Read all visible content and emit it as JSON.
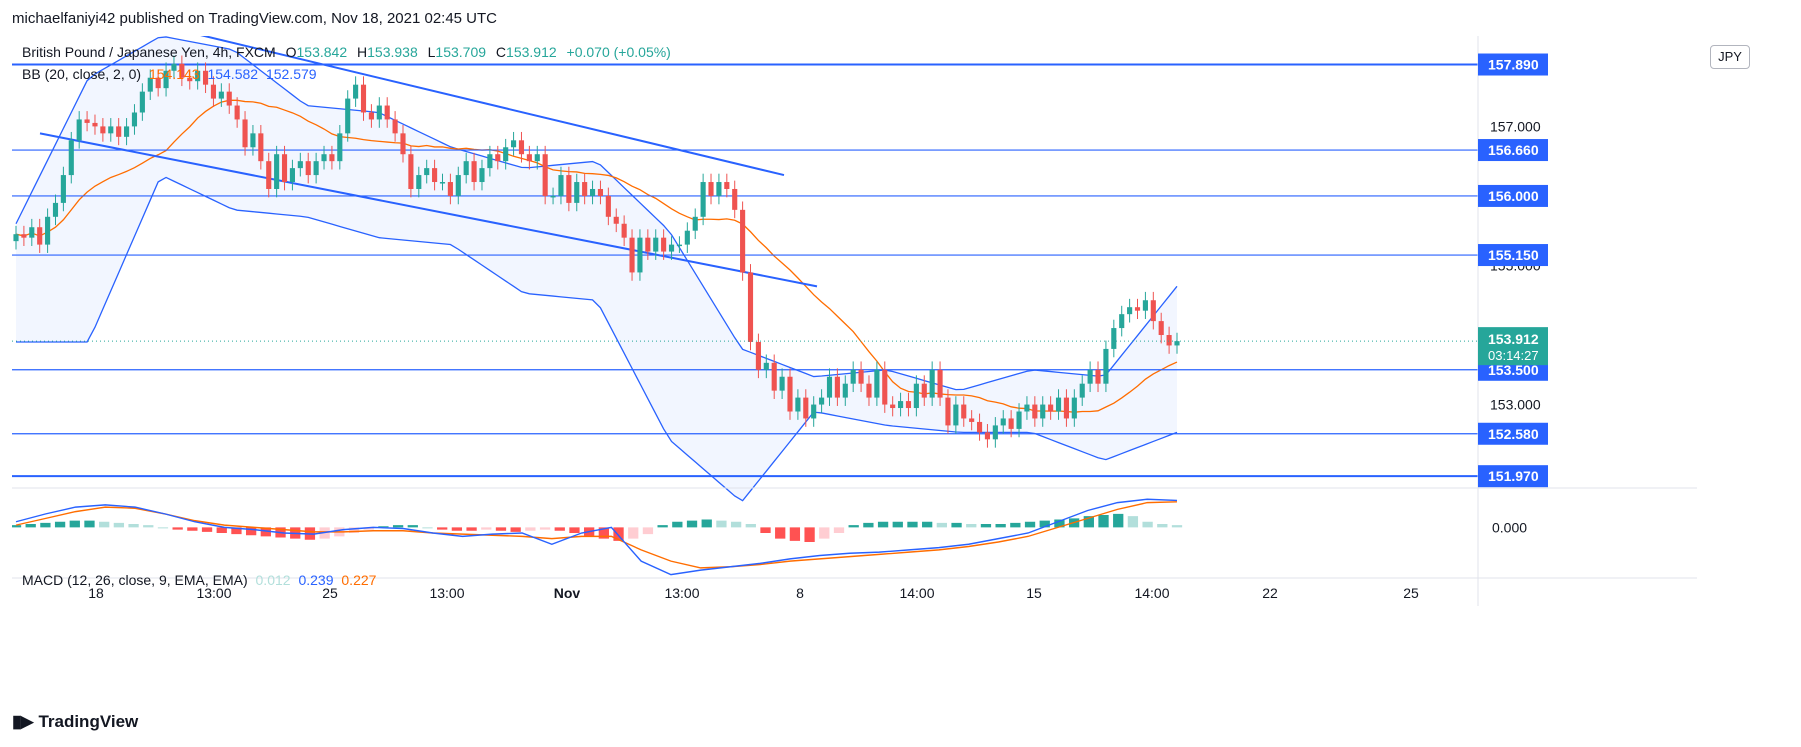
{
  "publish_line": "michaelfaniyi42 published on TradingView.com, Nov 18, 2021 02:45 UTC",
  "currency_badge": "JPY",
  "legend": {
    "symbol": "British Pound / Japanese Yen, 4h, FXCM",
    "o_label": "O",
    "o_value": "153.842",
    "h_label": "H",
    "h_value": "153.938",
    "l_label": "L",
    "l_value": "153.709",
    "c_label": "C",
    "c_value": "153.912",
    "change": "+0.070 (+0.05%)",
    "bb_label": "BB (20, close, 2, 0)",
    "bb_mid": "154.143",
    "bb_upper": "154.582",
    "bb_lower": "152.579",
    "macd_label": "MACD (12, 26, close, 9, EMA, EMA)",
    "macd_hist": "0.012",
    "macd_line": "0.239",
    "macd_signal": "0.227"
  },
  "price_axis": {
    "ticks": [
      "157.000",
      "156.000",
      "155.000",
      "153.000"
    ],
    "level_labels": [
      "157.890",
      "156.660",
      "156.000",
      "155.150",
      "153.500",
      "152.580",
      "151.970"
    ],
    "current_price": "153.912",
    "countdown": "03:14:27"
  },
  "macd_axis": {
    "ticks": [
      "0.000"
    ]
  },
  "time_axis": {
    "ticks": [
      "18",
      "13:00",
      "25",
      "13:00",
      "Nov",
      "13:00",
      "8",
      "14:00",
      "15",
      "14:00",
      "22",
      "25"
    ]
  },
  "footer": {
    "brand": "TradingView"
  },
  "colors": {
    "up": "#26a69a",
    "down": "#ef5350",
    "bb": "#2962ff",
    "basis": "#ff6d00",
    "level": "#2962ff",
    "macd": "#2962ff",
    "signal": "#ff6d00"
  },
  "chart_data": [
    {
      "type": "candlestick",
      "series_name": "GBPJPY 4h",
      "ylim": [
        151.8,
        158.3
      ],
      "horizontal_levels": [
        157.89,
        156.66,
        156.0,
        155.15,
        153.5,
        152.58,
        151.97
      ],
      "closes": [
        155.45,
        155.4,
        155.55,
        155.3,
        155.7,
        155.9,
        156.3,
        156.8,
        157.1,
        157.05,
        157.0,
        156.9,
        157.0,
        156.85,
        157.0,
        157.2,
        157.5,
        157.7,
        157.55,
        157.8,
        157.9,
        157.7,
        157.65,
        157.8,
        157.6,
        157.4,
        157.5,
        157.3,
        157.1,
        156.7,
        156.9,
        156.5,
        156.1,
        156.6,
        156.2,
        156.4,
        156.5,
        156.3,
        156.5,
        156.6,
        156.5,
        156.9,
        157.4,
        157.6,
        157.2,
        157.1,
        157.3,
        157.1,
        156.9,
        156.6,
        156.1,
        156.3,
        156.4,
        156.2,
        156.2,
        156.0,
        156.3,
        156.5,
        156.2,
        156.4,
        156.6,
        156.5,
        156.7,
        156.8,
        156.6,
        156.5,
        156.6,
        156.0,
        156.0,
        156.3,
        155.9,
        156.2,
        156.0,
        156.1,
        156.0,
        155.7,
        155.6,
        155.4,
        154.9,
        155.4,
        155.2,
        155.4,
        155.2,
        155.3,
        155.3,
        155.5,
        155.7,
        156.2,
        156.0,
        156.2,
        156.1,
        155.8,
        154.9,
        153.9,
        153.5,
        153.6,
        153.2,
        153.4,
        152.9,
        153.1,
        152.8,
        153.0,
        153.1,
        153.4,
        153.1,
        153.3,
        153.5,
        153.3,
        153.1,
        153.5,
        153.0,
        152.95,
        153.05,
        152.95,
        153.3,
        153.1,
        153.5,
        153.1,
        152.7,
        153.0,
        152.8,
        152.75,
        152.6,
        152.5,
        152.7,
        152.8,
        152.65,
        152.9,
        153.0,
        152.8,
        153.0,
        152.9,
        153.1,
        152.8,
        153.1,
        153.3,
        153.5,
        153.3,
        153.8,
        154.1,
        154.3,
        154.4,
        154.35,
        154.5,
        154.2,
        154.0,
        153.85,
        153.912
      ],
      "bb_upper_approx": [
        155.6,
        157.7,
        158.3,
        158.1,
        157.3,
        157.2,
        156.7,
        156.4,
        156.5,
        155.5,
        153.8,
        153.4,
        153.5,
        153.2,
        153.5,
        153.4,
        154.7
      ],
      "bb_lower_approx": [
        153.9,
        153.9,
        156.3,
        155.8,
        155.7,
        155.4,
        155.3,
        154.6,
        154.5,
        152.5,
        151.6,
        152.9,
        152.7,
        152.6,
        152.6,
        152.2,
        152.6
      ]
    },
    {
      "type": "macd",
      "ylim": [
        -0.45,
        0.35
      ],
      "hist": [
        0.02,
        0.03,
        0.04,
        0.05,
        0.06,
        0.06,
        0.05,
        0.04,
        0.03,
        0.02,
        0.0,
        -0.02,
        -0.03,
        -0.04,
        -0.05,
        -0.06,
        -0.07,
        -0.08,
        -0.09,
        -0.1,
        -0.11,
        -0.1,
        -0.08,
        -0.05,
        -0.02,
        0.01,
        0.02,
        0.02,
        0.0,
        -0.02,
        -0.03,
        -0.03,
        -0.02,
        -0.03,
        -0.04,
        -0.03,
        -0.02,
        -0.03,
        -0.05,
        -0.08,
        -0.1,
        -0.12,
        -0.1,
        -0.06,
        0.02,
        0.05,
        0.06,
        0.07,
        0.06,
        0.05,
        0.03,
        -0.05,
        -0.1,
        -0.12,
        -0.13,
        -0.1,
        -0.05,
        0.02,
        0.04,
        0.05,
        0.05,
        0.05,
        0.05,
        0.04,
        0.04,
        0.03,
        0.03,
        0.03,
        0.04,
        0.05,
        0.06,
        0.07,
        0.08,
        0.1,
        0.11,
        0.12,
        0.1,
        0.05,
        0.03,
        0.02
      ],
      "macd_line": [
        0.05,
        0.12,
        0.18,
        0.2,
        0.18,
        0.12,
        0.05,
        0.0,
        -0.02,
        -0.05,
        -0.06,
        -0.02,
        0.0,
        -0.01,
        -0.05,
        -0.08,
        -0.06,
        -0.05,
        -0.15,
        -0.05,
        0.0,
        -0.3,
        -0.42,
        -0.38,
        -0.35,
        -0.32,
        -0.28,
        -0.25,
        -0.23,
        -0.22,
        -0.2,
        -0.18,
        -0.15,
        -0.1,
        -0.05,
        0.05,
        0.15,
        0.22,
        0.25,
        0.239
      ],
      "signal_line": [
        0.02,
        0.08,
        0.14,
        0.18,
        0.17,
        0.12,
        0.06,
        0.02,
        0.0,
        -0.02,
        -0.04,
        -0.04,
        -0.03,
        -0.03,
        -0.05,
        -0.06,
        -0.07,
        -0.08,
        -0.1,
        -0.08,
        -0.08,
        -0.2,
        -0.3,
        -0.36,
        -0.35,
        -0.33,
        -0.3,
        -0.28,
        -0.26,
        -0.24,
        -0.22,
        -0.2,
        -0.17,
        -0.13,
        -0.08,
        0.0,
        0.08,
        0.16,
        0.22,
        0.227
      ]
    }
  ]
}
